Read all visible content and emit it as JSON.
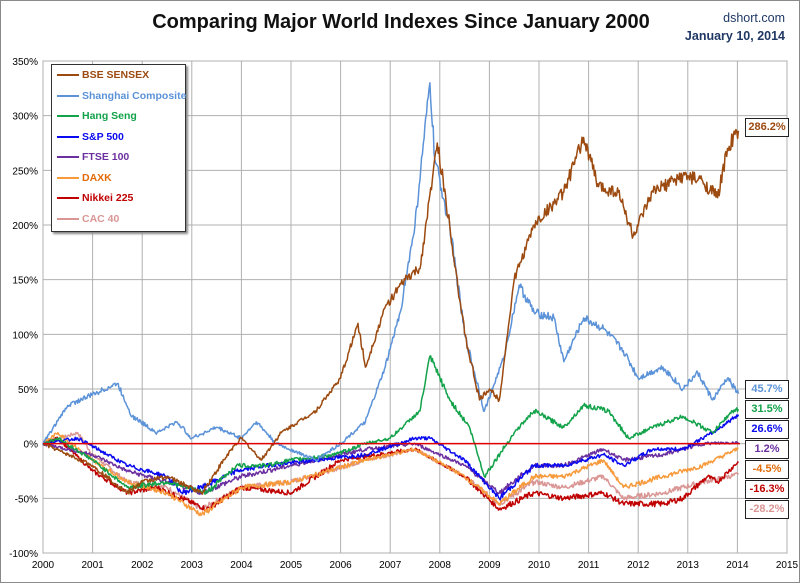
{
  "chart_data": {
    "type": "line",
    "title": "Comparing Major World Indexes Since January 2000",
    "source": "dshort.com",
    "date": "January 10, 2014",
    "xlim": [
      2000,
      2015
    ],
    "ylim": [
      -100,
      350
    ],
    "x_ticks": [
      "2000",
      "2001",
      "2002",
      "2003",
      "2004",
      "2005",
      "2006",
      "2007",
      "2008",
      "2009",
      "2010",
      "2011",
      "2012",
      "2013",
      "2014",
      "2015"
    ],
    "y_ticks": [
      "-100%",
      "-50%",
      "0%",
      "50%",
      "100%",
      "150%",
      "200%",
      "250%",
      "300%",
      "350%"
    ],
    "y_tick_values": [
      -100,
      -50,
      0,
      50,
      100,
      150,
      200,
      250,
      300,
      350
    ],
    "grid": true,
    "legend_position": "top-left",
    "series": [
      {
        "name": "BSE SENSEX",
        "color": "#9c4a0f",
        "end_label": "286.2%",
        "points": [
          [
            2000,
            0
          ],
          [
            2000.5,
            -10
          ],
          [
            2001,
            -20
          ],
          [
            2001.7,
            -45
          ],
          [
            2002,
            -35
          ],
          [
            2002.5,
            -30
          ],
          [
            2003.2,
            -45
          ],
          [
            2003.8,
            -5
          ],
          [
            2004,
            5
          ],
          [
            2004.4,
            -15
          ],
          [
            2004.8,
            10
          ],
          [
            2005.5,
            30
          ],
          [
            2006,
            60
          ],
          [
            2006.35,
            110
          ],
          [
            2006.5,
            70
          ],
          [
            2006.9,
            125
          ],
          [
            2007.3,
            150
          ],
          [
            2007.6,
            160
          ],
          [
            2007.95,
            275
          ],
          [
            2008.2,
            200
          ],
          [
            2008.5,
            100
          ],
          [
            2008.8,
            40
          ],
          [
            2009,
            50
          ],
          [
            2009.2,
            40
          ],
          [
            2009.5,
            150
          ],
          [
            2009.9,
            200
          ],
          [
            2010.5,
            230
          ],
          [
            2010.9,
            280
          ],
          [
            2011.2,
            235
          ],
          [
            2011.6,
            230
          ],
          [
            2011.9,
            190
          ],
          [
            2012.3,
            230
          ],
          [
            2012.9,
            245
          ],
          [
            2013.3,
            240
          ],
          [
            2013.6,
            225
          ],
          [
            2013.8,
            270
          ],
          [
            2014.02,
            286.2
          ]
        ]
      },
      {
        "name": "Shanghai Composite",
        "color": "#5b92d8",
        "end_label": "45.7%",
        "points": [
          [
            2000,
            0
          ],
          [
            2000.5,
            35
          ],
          [
            2001,
            45
          ],
          [
            2001.5,
            55
          ],
          [
            2001.8,
            25
          ],
          [
            2002.3,
            10
          ],
          [
            2002.7,
            20
          ],
          [
            2003,
            5
          ],
          [
            2003.5,
            15
          ],
          [
            2004,
            5
          ],
          [
            2004.3,
            20
          ],
          [
            2004.7,
            0
          ],
          [
            2005.5,
            -15
          ],
          [
            2006,
            0
          ],
          [
            2006.5,
            20
          ],
          [
            2006.9,
            70
          ],
          [
            2007.2,
            120
          ],
          [
            2007.5,
            200
          ],
          [
            2007.8,
            330
          ],
          [
            2007.9,
            260
          ],
          [
            2008.2,
            200
          ],
          [
            2008.5,
            100
          ],
          [
            2008.9,
            30
          ],
          [
            2009.3,
            80
          ],
          [
            2009.6,
            145
          ],
          [
            2009.9,
            120
          ],
          [
            2010.3,
            115
          ],
          [
            2010.5,
            75
          ],
          [
            2010.9,
            115
          ],
          [
            2011.3,
            105
          ],
          [
            2011.7,
            85
          ],
          [
            2012,
            60
          ],
          [
            2012.5,
            70
          ],
          [
            2012.9,
            50
          ],
          [
            2013.2,
            65
          ],
          [
            2013.5,
            40
          ],
          [
            2013.8,
            60
          ],
          [
            2014.02,
            45.7
          ]
        ]
      },
      {
        "name": "Hang Seng",
        "color": "#12a24a",
        "end_label": "31.5%",
        "points": [
          [
            2000,
            0
          ],
          [
            2000.3,
            5
          ],
          [
            2001,
            -15
          ],
          [
            2001.7,
            -40
          ],
          [
            2002.5,
            -35
          ],
          [
            2003.3,
            -45
          ],
          [
            2003.9,
            -20
          ],
          [
            2004.5,
            -20
          ],
          [
            2005,
            -15
          ],
          [
            2005.9,
            -10
          ],
          [
            2006.5,
            0
          ],
          [
            2007,
            5
          ],
          [
            2007.6,
            30
          ],
          [
            2007.8,
            80
          ],
          [
            2008.2,
            40
          ],
          [
            2008.6,
            15
          ],
          [
            2008.9,
            -30
          ],
          [
            2009.5,
            10
          ],
          [
            2009.9,
            30
          ],
          [
            2010.5,
            15
          ],
          [
            2010.9,
            35
          ],
          [
            2011.4,
            30
          ],
          [
            2011.8,
            5
          ],
          [
            2012.3,
            15
          ],
          [
            2012.9,
            25
          ],
          [
            2013.5,
            10
          ],
          [
            2013.9,
            30
          ],
          [
            2014.02,
            31.5
          ]
        ]
      },
      {
        "name": "S&P 500",
        "color": "#0a0af0",
        "end_label": "26.6%",
        "points": [
          [
            2000,
            0
          ],
          [
            2000.7,
            5
          ],
          [
            2001.7,
            -20
          ],
          [
            2002.5,
            -30
          ],
          [
            2002.8,
            -45
          ],
          [
            2003.2,
            -40
          ],
          [
            2003.9,
            -25
          ],
          [
            2004.5,
            -20
          ],
          [
            2005.5,
            -15
          ],
          [
            2006.5,
            -10
          ],
          [
            2007.5,
            5
          ],
          [
            2007.8,
            5
          ],
          [
            2008.5,
            -15
          ],
          [
            2009.2,
            -50
          ],
          [
            2009.9,
            -20
          ],
          [
            2010.5,
            -20
          ],
          [
            2011.3,
            -10
          ],
          [
            2011.7,
            -20
          ],
          [
            2012.3,
            -5
          ],
          [
            2012.9,
            -5
          ],
          [
            2013.5,
            10
          ],
          [
            2014.02,
            26.6
          ]
        ]
      },
      {
        "name": "FTSE 100",
        "color": "#6b2fa0",
        "end_label": "1.2%",
        "points": [
          [
            2000,
            0
          ],
          [
            2001,
            -10
          ],
          [
            2001.7,
            -25
          ],
          [
            2002.5,
            -35
          ],
          [
            2003.2,
            -45
          ],
          [
            2004,
            -30
          ],
          [
            2005,
            -20
          ],
          [
            2006.5,
            -5
          ],
          [
            2007.5,
            0
          ],
          [
            2008.5,
            -20
          ],
          [
            2009.2,
            -45
          ],
          [
            2009.9,
            -20
          ],
          [
            2010.5,
            -20
          ],
          [
            2011.3,
            -5
          ],
          [
            2011.7,
            -15
          ],
          [
            2012.5,
            -10
          ],
          [
            2013.3,
            0
          ],
          [
            2014.02,
            1.2
          ]
        ]
      },
      {
        "name": "DAXK",
        "color": "#f79a3c",
        "end_label": "-4.5%",
        "label_color": "#e36c09",
        "points": [
          [
            2000,
            0
          ],
          [
            2000.3,
            10
          ],
          [
            2001,
            -15
          ],
          [
            2001.7,
            -35
          ],
          [
            2002.5,
            -45
          ],
          [
            2003.2,
            -65
          ],
          [
            2004,
            -40
          ],
          [
            2005,
            -35
          ],
          [
            2006.5,
            -15
          ],
          [
            2007.5,
            -5
          ],
          [
            2008.5,
            -30
          ],
          [
            2009.2,
            -55
          ],
          [
            2009.9,
            -30
          ],
          [
            2010.5,
            -30
          ],
          [
            2011.3,
            -15
          ],
          [
            2011.7,
            -40
          ],
          [
            2012.5,
            -30
          ],
          [
            2013.3,
            -20
          ],
          [
            2014.02,
            -4.5
          ]
        ]
      },
      {
        "name": "Nikkei 225",
        "color": "#c00000",
        "end_label": "-16.3%",
        "points": [
          [
            2000,
            0
          ],
          [
            2000.3,
            5
          ],
          [
            2001,
            -25
          ],
          [
            2001.7,
            -45
          ],
          [
            2002.3,
            -40
          ],
          [
            2003.3,
            -60
          ],
          [
            2004,
            -40
          ],
          [
            2005,
            -45
          ],
          [
            2006,
            -15
          ],
          [
            2007.5,
            -5
          ],
          [
            2008.5,
            -30
          ],
          [
            2009.2,
            -60
          ],
          [
            2009.9,
            -45
          ],
          [
            2010.5,
            -50
          ],
          [
            2011.3,
            -45
          ],
          [
            2011.7,
            -55
          ],
          [
            2012.5,
            -55
          ],
          [
            2012.9,
            -50
          ],
          [
            2013.4,
            -30
          ],
          [
            2013.6,
            -35
          ],
          [
            2014.02,
            -16.3
          ]
        ]
      },
      {
        "name": "CAC 40",
        "color": "#d99694",
        "end_label": "-28.2%",
        "points": [
          [
            2000,
            0
          ],
          [
            2000.7,
            10
          ],
          [
            2001,
            -10
          ],
          [
            2001.7,
            -35
          ],
          [
            2002.5,
            -40
          ],
          [
            2003.2,
            -60
          ],
          [
            2004,
            -40
          ],
          [
            2005,
            -35
          ],
          [
            2006.5,
            -15
          ],
          [
            2007.5,
            -5
          ],
          [
            2008.5,
            -30
          ],
          [
            2009.2,
            -55
          ],
          [
            2009.9,
            -35
          ],
          [
            2010.5,
            -40
          ],
          [
            2011.3,
            -30
          ],
          [
            2011.7,
            -50
          ],
          [
            2012.5,
            -45
          ],
          [
            2013.3,
            -35
          ],
          [
            2014.02,
            -28.2
          ]
        ]
      }
    ],
    "reference_line": {
      "value": 0,
      "color": "#e00000"
    }
  }
}
